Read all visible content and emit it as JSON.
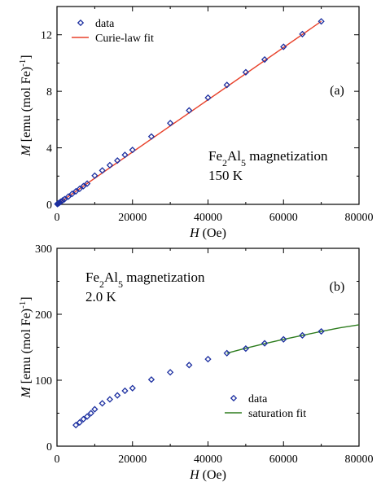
{
  "chart_data": [
    {
      "type": "scatter",
      "panel_label": "(a)",
      "xlabel_italic": "H",
      "xlabel_rest": " (Oe)",
      "ylabel_italic": "M",
      "ylabel_rest": " [emu (mol Fe)",
      "ylabel_sup": "-1",
      "ylabel_end": "]",
      "xlim": [
        0,
        80000
      ],
      "ylim": [
        0,
        14
      ],
      "xticks": [
        0,
        20000,
        40000,
        60000,
        80000
      ],
      "xtick_labels": [
        "0",
        "20000",
        "40000",
        "60000",
        "80000"
      ],
      "yticks": [
        0,
        4,
        8,
        12
      ],
      "ytick_labels": [
        "0",
        "4",
        "8",
        "12"
      ],
      "annotation": {
        "pre": "Fe",
        "sub1": "2",
        "mid": "Al",
        "sub2": "5",
        "post": " magnetization",
        "line2": "150 K"
      },
      "legend": {
        "position": "top-left",
        "marker_label": "data",
        "line_label": "Curie-law fit"
      },
      "series": [
        {
          "name": "data",
          "marker": "diamond",
          "color": "#1c2fa0",
          "x": [
            100,
            200,
            300,
            500,
            700,
            1000,
            1500,
            2000,
            3000,
            4000,
            5000,
            6000,
            7000,
            8000,
            10000,
            12000,
            14000,
            16000,
            18000,
            20000,
            25000,
            30000,
            35000,
            40000,
            45000,
            50000,
            55000,
            60000,
            65000,
            70000
          ],
          "y": [
            0.02,
            0.04,
            0.06,
            0.09,
            0.13,
            0.19,
            0.28,
            0.37,
            0.55,
            0.74,
            0.92,
            1.1,
            1.29,
            1.47,
            2.03,
            2.4,
            2.77,
            3.1,
            3.5,
            3.85,
            4.8,
            5.75,
            6.65,
            7.55,
            8.45,
            9.35,
            10.25,
            11.15,
            12.05,
            12.95
          ]
        },
        {
          "name": "Curie-law fit",
          "line": true,
          "color": "#e8412a",
          "x": [
            0,
            70000
          ],
          "y": [
            0,
            12.95
          ]
        }
      ]
    },
    {
      "type": "scatter",
      "panel_label": "(b)",
      "xlabel_italic": "H",
      "xlabel_rest": " (Oe)",
      "ylabel_italic": "M",
      "ylabel_rest": " [emu (mol Fe)",
      "ylabel_sup": "-1",
      "ylabel_end": "]",
      "xlim": [
        0,
        80000
      ],
      "ylim": [
        0,
        300
      ],
      "xticks": [
        0,
        20000,
        40000,
        60000,
        80000
      ],
      "xtick_labels": [
        "0",
        "20000",
        "40000",
        "60000",
        "80000"
      ],
      "yticks": [
        0,
        100,
        200,
        300
      ],
      "ytick_labels": [
        "0",
        "100",
        "200",
        "300"
      ],
      "annotation": {
        "pre": "Fe",
        "sub1": "2",
        "mid": "Al",
        "sub2": "5",
        "post": " magnetization",
        "line2": "2.0 K"
      },
      "legend": {
        "position": "bottom-right",
        "marker_label": "data",
        "line_label": "saturation fit"
      },
      "series": [
        {
          "name": "data",
          "marker": "diamond",
          "color": "#1c2fa0",
          "x": [
            5000,
            6000,
            7000,
            8000,
            9000,
            10000,
            12000,
            14000,
            16000,
            18000,
            20000,
            25000,
            30000,
            35000,
            40000,
            45000,
            50000,
            55000,
            60000,
            65000,
            70000
          ],
          "y": [
            32,
            36,
            41,
            45,
            50,
            56,
            65,
            71,
            77,
            84,
            88,
            101,
            112,
            123,
            132,
            141,
            148,
            156,
            162,
            168,
            174
          ]
        },
        {
          "name": "saturation fit",
          "line": true,
          "color": "#2e7d1f",
          "x": [
            45000,
            50000,
            55000,
            60000,
            65000,
            70000,
            75000,
            80000
          ],
          "y": [
            141,
            148.5,
            155.5,
            162,
            168,
            174,
            179.5,
            184
          ]
        }
      ]
    }
  ]
}
